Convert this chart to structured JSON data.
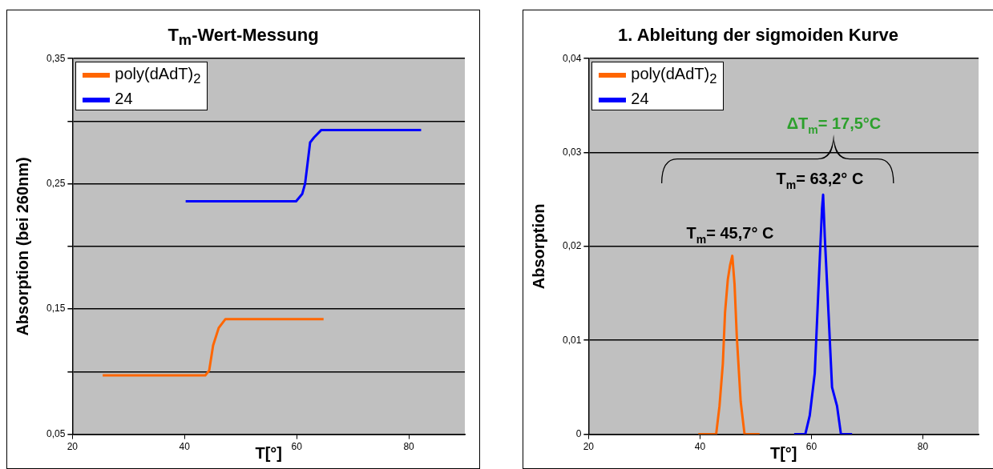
{
  "chart_data": [
    {
      "type": "line",
      "title": "T$_{m}$-Wert-Messung",
      "xlabel": "T[°]",
      "ylabel": "Absorption (bei 260nm)",
      "xlim": [
        20,
        90
      ],
      "xticks": [
        20,
        40,
        60,
        80
      ],
      "ylim": [
        0.05,
        0.35
      ],
      "yticks": [
        {
          "value": 0.05,
          "label": "0,05"
        },
        {
          "value": 0.1,
          "label": null
        },
        {
          "value": 0.15,
          "label": "0,15"
        },
        {
          "value": 0.2,
          "label": null
        },
        {
          "value": 0.25,
          "label": "0,25"
        },
        {
          "value": 0.3,
          "label": null
        },
        {
          "value": 0.35,
          "label": "0,35"
        }
      ],
      "grid": "y",
      "legend": "top left",
      "marker": "none",
      "series": [
        {
          "name": "poly(dAdT)$_{2}$",
          "color": "#ff6600",
          "x": [
            25.4,
            43.7,
            44.4,
            45.1,
            46.1,
            47.3,
            64.8
          ],
          "values": [
            0.097,
            0.097,
            0.101,
            0.121,
            0.135,
            0.142,
            0.142
          ]
        },
        {
          "name": "24",
          "color": "#0000ff",
          "x": [
            40.2,
            59.9,
            61,
            61.5,
            62.4,
            63.1,
            64.4,
            82.2
          ],
          "values": [
            0.236,
            0.236,
            0.242,
            0.25,
            0.283,
            0.287,
            0.293,
            0.293
          ]
        }
      ]
    },
    {
      "type": "line",
      "title": "1. Ableitung der sigmoiden Kurve",
      "xlabel": "T[°]",
      "ylabel": "Absorption",
      "xlim": [
        20,
        90
      ],
      "xticks": [
        20,
        40,
        60,
        80
      ],
      "ylim": [
        0,
        0.04
      ],
      "yticks": [
        0,
        {
          "value": 0.01,
          "label": "0,01"
        },
        {
          "value": 0.02,
          "label": "0,02"
        },
        {
          "value": 0.03,
          "label": "0,03"
        },
        {
          "value": 0.04,
          "label": "0,04"
        }
      ],
      "grid": "y",
      "legend": "top left",
      "marker": "none",
      "annotations": [
        "T$_{m}$= 45,7° C",
        "T$_{m}$= 63,2° C",
        "ΔT$_{m}$= 17,5°C"
      ],
      "series": [
        {
          "name": "poly(dAdT)$_{2}$",
          "color": "#ff6600",
          "x": [
            39.7,
            42.9,
            43.5,
            44.1,
            44.5,
            45,
            45.4,
            45.8,
            46.2,
            46.6,
            47.3,
            48,
            50.7
          ],
          "values": [
            0,
            0,
            0.003,
            0.0075,
            0.013,
            0.0165,
            0.018,
            0.019,
            0.016,
            0.0105,
            0.0035,
            0,
            0
          ]
        },
        {
          "name": "24",
          "color": "#0000ff",
          "x": [
            56.9,
            58.9,
            59.7,
            60.6,
            61.3,
            61.9,
            62.1,
            62.4,
            63.1,
            63.7,
            64.6,
            65.3,
            67.3
          ],
          "values": [
            0,
            0,
            0.002,
            0.0065,
            0.016,
            0.024,
            0.0255,
            0.021,
            0.0125,
            0.005,
            0.003,
            0,
            0
          ]
        }
      ]
    }
  ]
}
